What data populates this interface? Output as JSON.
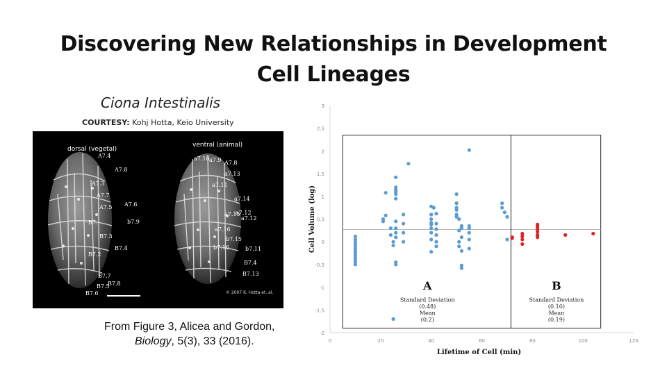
{
  "slide": {
    "title_line1": "Discovering New Relationships in Development",
    "title_line2": "Cell Lineages",
    "species": "Ciona Intestinalis",
    "courtesy_label": "COURTESY:",
    "courtesy_text": " Kohj Hotta, Keio University",
    "citation_line1": "From Figure 3, Alicea and Gordon,",
    "citation_journal": "Biology",
    "citation_rest": ", 5(3), 33 (2016)."
  },
  "micrograph": {
    "left_heading": "dorsal (vegetal)",
    "right_heading": "ventral (animal)",
    "copyright": "© 2007 K. Hotta et. al.",
    "left_labels": [
      "A7.4",
      "A7.8",
      "A7.3",
      "A7.7",
      "A7.5",
      "A7.6",
      "b7.9",
      "B7.",
      "B7.3",
      "B7.4",
      "B7.2",
      "B7.7",
      "B7.5",
      "B7.8",
      "B7.6"
    ],
    "right_labels": [
      "a7.10",
      "a7.9",
      "A7.8",
      "a7.13",
      "a7.11",
      "a7.12",
      "a7.14",
      "a7.15",
      "a7.12",
      "a7.16",
      "b7.15",
      "b7.16",
      "b7.11",
      "B7.4",
      "B7.13"
    ]
  },
  "chart_data": {
    "type": "scatter",
    "xlabel": "Lifetime of Cell (min)",
    "ylabel": "Cell Volume (log)",
    "xlim": [
      0,
      120
    ],
    "ylim": [
      -2,
      3
    ],
    "xticks": [
      0,
      20,
      40,
      60,
      80,
      100,
      120
    ],
    "yticks": [
      -2,
      -1.5,
      -1,
      -0.5,
      0,
      0.5,
      1,
      1.5,
      2,
      2.5,
      3
    ],
    "mean_line_y": 0.27,
    "divider_x": 71.5,
    "box": {
      "x": [
        5,
        107
      ],
      "y": [
        -1.9,
        2.35
      ]
    },
    "colors": {
      "A": "#5b9bd5",
      "B": "#e02020"
    },
    "regions": [
      {
        "label": "A",
        "sd_label": "Standard Deviation",
        "sd": "(0.48)",
        "mean_label": "Mean",
        "mean": "(0.2)",
        "x": 38.5
      },
      {
        "label": "B",
        "sd_label": "Standard Deviation",
        "sd": "(0.10)",
        "mean_label": "Mean",
        "mean": "(0.19)",
        "x": 89.5
      }
    ],
    "series": [
      {
        "group": "A",
        "points": [
          [
            10,
            0.12
          ],
          [
            10,
            0.05
          ],
          [
            10,
            0.0
          ],
          [
            10,
            -0.05
          ],
          [
            10,
            -0.1
          ],
          [
            10,
            -0.15
          ],
          [
            10,
            -0.2
          ],
          [
            10,
            -0.25
          ],
          [
            10,
            -0.3
          ],
          [
            10,
            -0.35
          ],
          [
            10,
            -0.4
          ],
          [
            10,
            -0.45
          ],
          [
            10,
            -0.5
          ],
          [
            21,
            0.5
          ],
          [
            21,
            0.45
          ],
          [
            22,
            1.08
          ],
          [
            22,
            0.58
          ],
          [
            24,
            0.3
          ],
          [
            24,
            0.15
          ],
          [
            25,
            0.0
          ],
          [
            25,
            -0.08
          ],
          [
            25,
            -1.7
          ],
          [
            26,
            1.42
          ],
          [
            26,
            1.2
          ],
          [
            26,
            1.15
          ],
          [
            26,
            1.1
          ],
          [
            26,
            1.05
          ],
          [
            26,
            0.95
          ],
          [
            26,
            0.45
          ],
          [
            26,
            0.3
          ],
          [
            26,
            0.2
          ],
          [
            26,
            0.1
          ],
          [
            26,
            -0.45
          ],
          [
            26,
            -0.5
          ],
          [
            29,
            0.6
          ],
          [
            29,
            0.4
          ],
          [
            29,
            0.2
          ],
          [
            29,
            0.0
          ],
          [
            31,
            1.72
          ],
          [
            40,
            0.78
          ],
          [
            40,
            0.6
          ],
          [
            40,
            0.5
          ],
          [
            40,
            0.42
          ],
          [
            40,
            0.38
          ],
          [
            40,
            0.3
          ],
          [
            40,
            0.2
          ],
          [
            40,
            0.05
          ],
          [
            40,
            -0.22
          ],
          [
            41,
            0.75
          ],
          [
            42,
            0.62
          ],
          [
            42,
            0.4
          ],
          [
            42,
            0.28
          ],
          [
            42,
            0.15
          ],
          [
            42,
            0.0
          ],
          [
            42,
            -0.1
          ],
          [
            50,
            1.05
          ],
          [
            50,
            0.85
          ],
          [
            50,
            0.75
          ],
          [
            50,
            0.7
          ],
          [
            50,
            0.6
          ],
          [
            50,
            0.55
          ],
          [
            51,
            0.5
          ],
          [
            51,
            0.25
          ],
          [
            51,
            0.0
          ],
          [
            51,
            -0.1
          ],
          [
            52,
            0.35
          ],
          [
            52,
            0.3
          ],
          [
            52,
            0.1
          ],
          [
            52,
            -0.2
          ],
          [
            52,
            -0.52
          ],
          [
            52,
            -0.58
          ],
          [
            55,
            2.02
          ],
          [
            55,
            0.35
          ],
          [
            55,
            0.3
          ],
          [
            55,
            0.2
          ],
          [
            55,
            0.05
          ],
          [
            55,
            -0.15
          ],
          [
            68,
            0.85
          ],
          [
            68,
            0.75
          ],
          [
            69,
            0.65
          ],
          [
            70,
            0.55
          ],
          [
            70,
            0.05
          ]
        ]
      },
      {
        "group": "B",
        "points": [
          [
            72,
            0.1
          ],
          [
            72,
            0.08
          ],
          [
            76,
            0.18
          ],
          [
            76,
            0.12
          ],
          [
            76,
            0.05
          ],
          [
            76,
            -0.05
          ],
          [
            82,
            0.38
          ],
          [
            82,
            0.33
          ],
          [
            82,
            0.28
          ],
          [
            82,
            0.22
          ],
          [
            82,
            0.15
          ],
          [
            82,
            0.1
          ],
          [
            93,
            0.15
          ],
          [
            104,
            0.18
          ]
        ]
      }
    ]
  }
}
